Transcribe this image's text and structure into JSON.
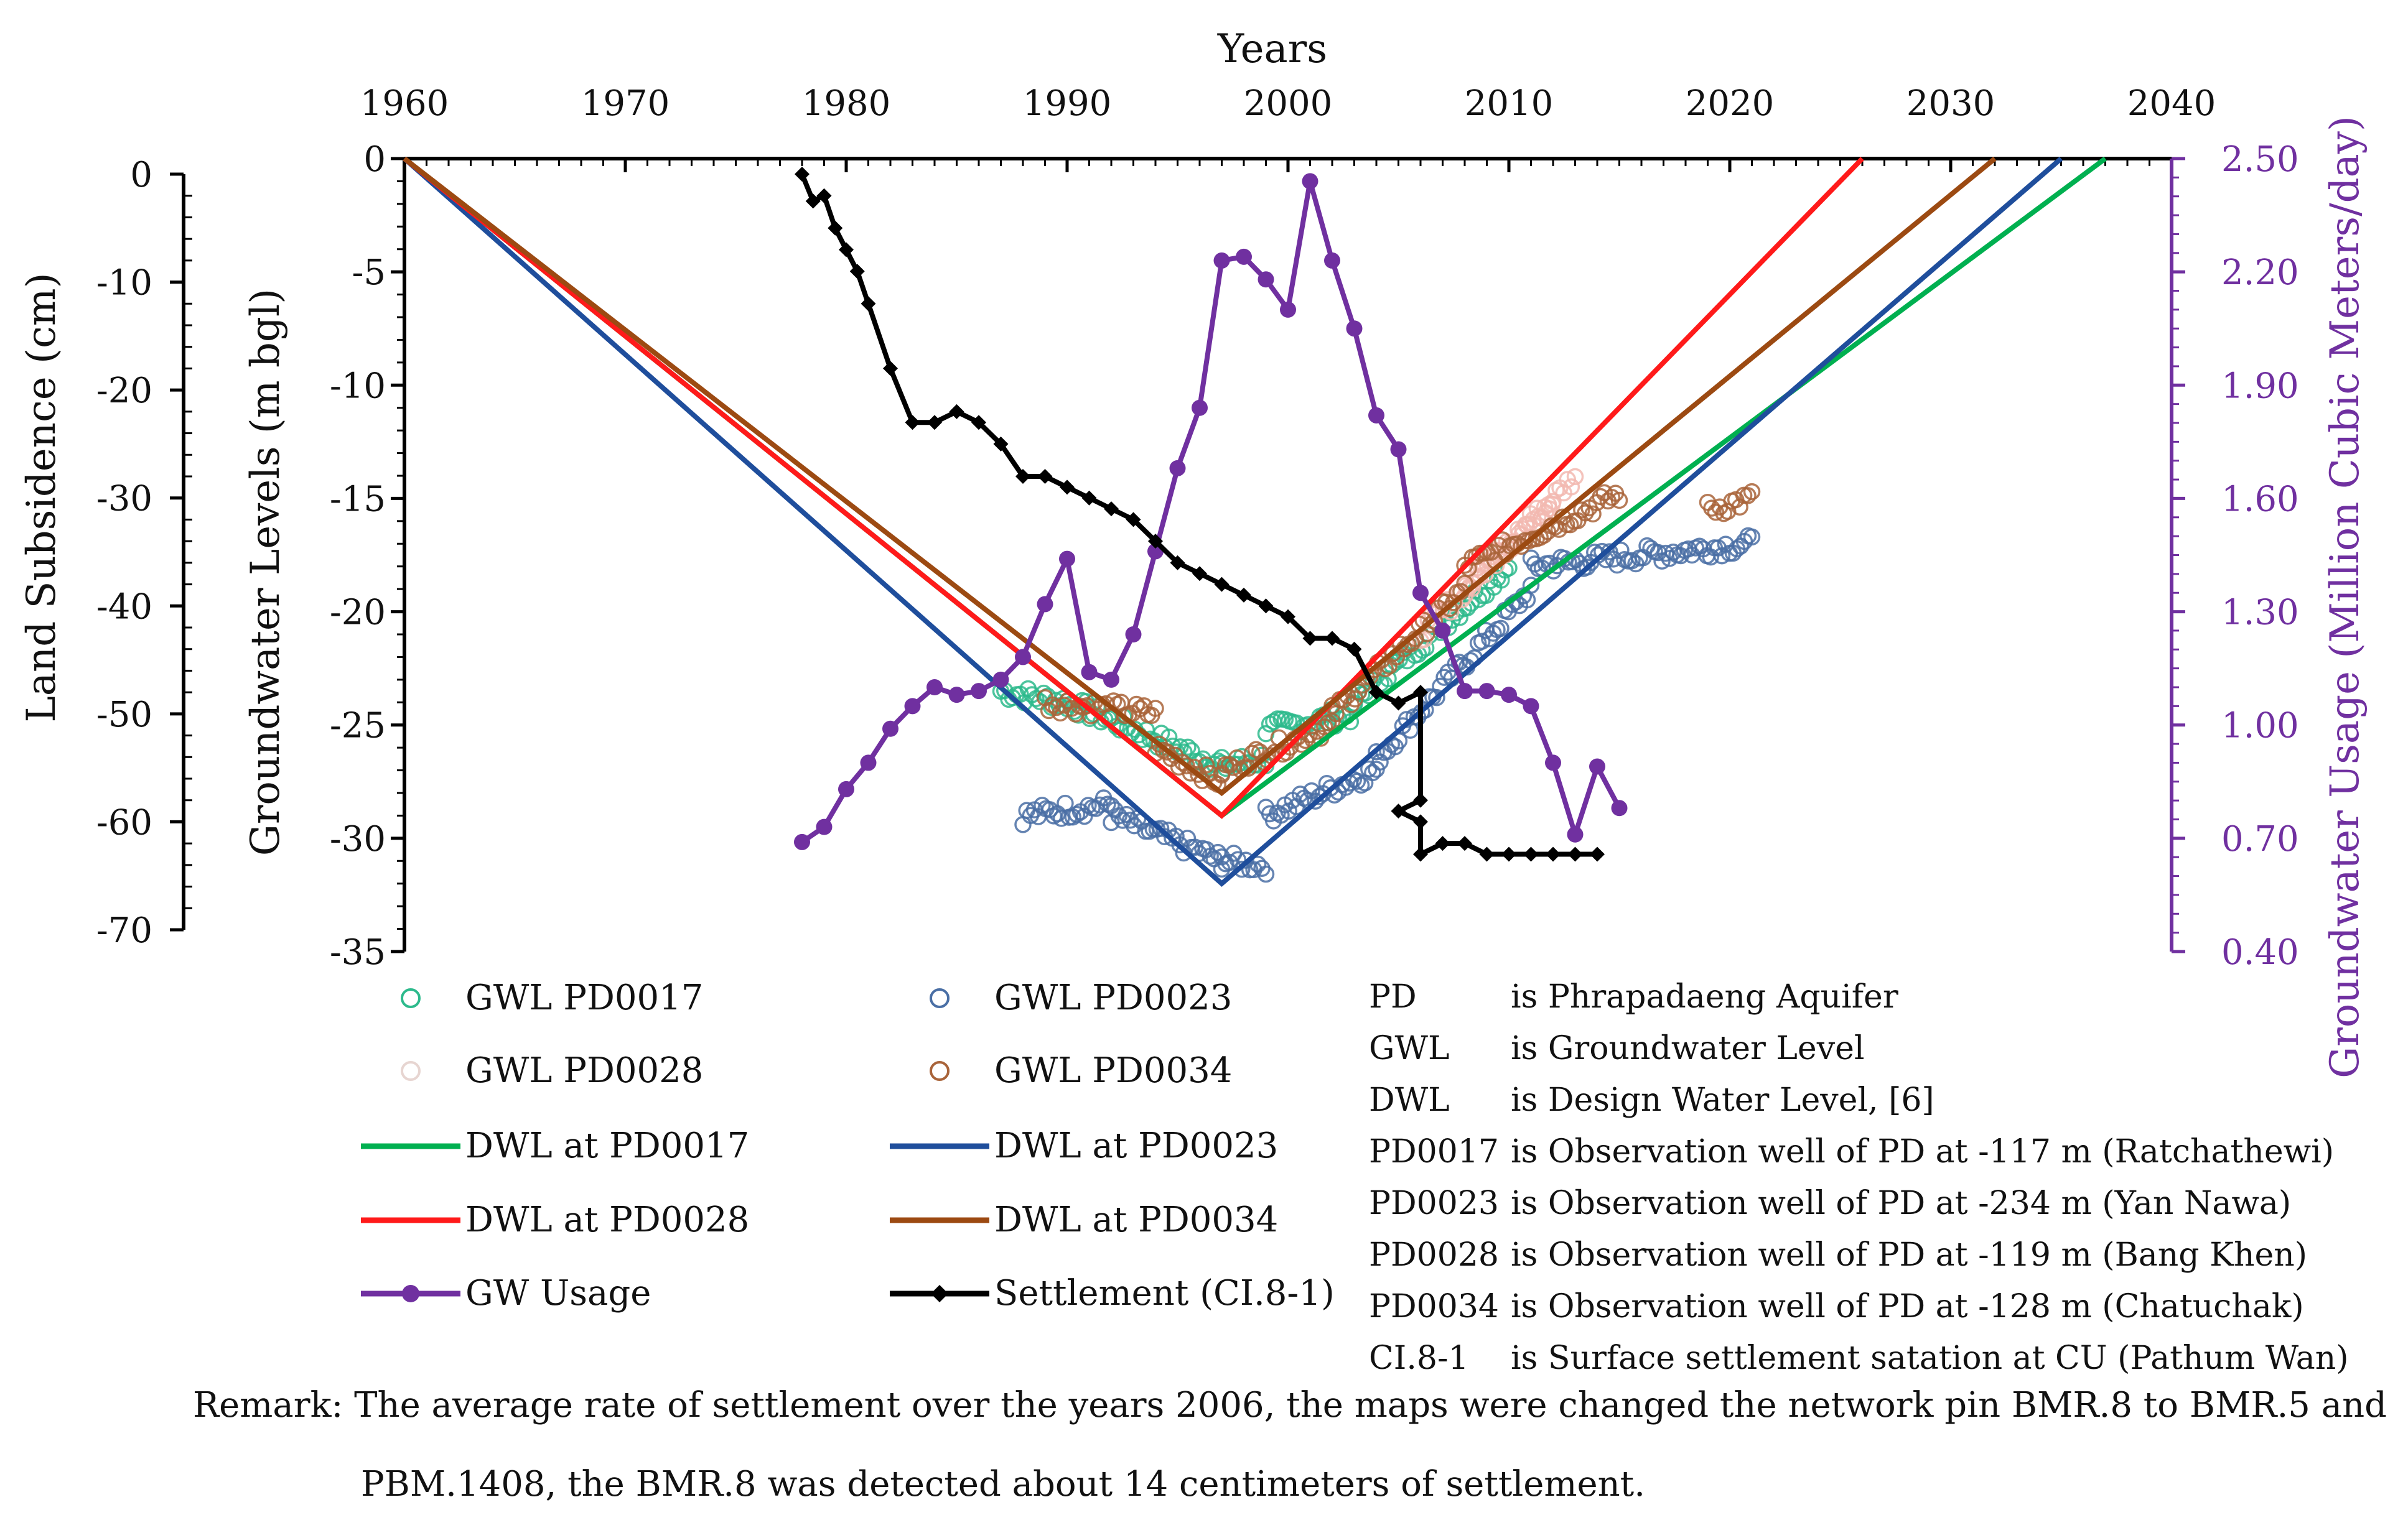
{
  "chart_data": {
    "type": "line+scatter",
    "x_axis": {
      "title": "Years",
      "range": [
        1960,
        2040
      ],
      "ticks": [
        "1960",
        "1970",
        "1980",
        "1990",
        "2000",
        "2010",
        "2020",
        "2030",
        "2040"
      ],
      "tick_values": [
        1960,
        1970,
        1980,
        1990,
        2000,
        2010,
        2020,
        2030,
        2040
      ]
    },
    "gwl_axis": {
      "title": "Groundwater Levels (m bgl)",
      "range": [
        -35,
        0
      ],
      "ticks": [
        "0",
        "-5",
        "-10",
        "-15",
        "-20",
        "-25",
        "-30",
        "-35"
      ],
      "tick_values": [
        0,
        -5,
        -10,
        -15,
        -20,
        -25,
        -30,
        -35
      ]
    },
    "subsidence_axis": {
      "title": "Land Subsidence (cm)",
      "range": [
        -70,
        0
      ],
      "ticks": [
        "0",
        "-10",
        "-20",
        "-30",
        "-40",
        "-50",
        "-60",
        "-70"
      ],
      "tick_values": [
        0,
        -10,
        -20,
        -30,
        -40,
        -50,
        -60,
        -70
      ]
    },
    "usage_axis": {
      "title": "Groundwater Usage (Million Cubic Meters/day)",
      "range": [
        0.4,
        2.5
      ],
      "ticks": [
        "2.50",
        "2.20",
        "1.90",
        "1.60",
        "1.30",
        "1.00",
        "0.70",
        "0.40"
      ],
      "tick_values": [
        2.5,
        2.2,
        1.9,
        1.6,
        1.3,
        1.0,
        0.7,
        0.4
      ]
    },
    "dwl_series": [
      {
        "name": "DWL at PD0017",
        "color": "#00b050",
        "x": [
          1960,
          1997,
          2037
        ],
        "y": [
          0,
          -29,
          0
        ]
      },
      {
        "name": "DWL at PD0023",
        "color": "#1f4e9c",
        "x": [
          1960,
          1997,
          2035
        ],
        "y": [
          0,
          -32,
          0
        ]
      },
      {
        "name": "DWL at PD0028",
        "color": "#ff1a1a",
        "x": [
          1960,
          1997,
          2026
        ],
        "y": [
          0,
          -29,
          0
        ]
      },
      {
        "name": "DWL at PD0034",
        "color": "#9c4a12",
        "x": [
          1960,
          1997,
          2032
        ],
        "y": [
          0,
          -28,
          0
        ]
      }
    ],
    "gw_usage": {
      "name": "GW Usage",
      "color": "#7030a0",
      "x": [
        1978,
        1979,
        1980,
        1981,
        1982,
        1983,
        1984,
        1985,
        1986,
        1987,
        1988,
        1989,
        1990,
        1991,
        1992,
        1993,
        1994,
        1995,
        1996,
        1997,
        1998,
        1999,
        2000,
        2001,
        2002,
        2003,
        2004,
        2005,
        2006,
        2007,
        2008,
        2009,
        2010,
        2011,
        2012,
        2013,
        2014,
        2015
      ],
      "y": [
        0.69,
        0.73,
        0.83,
        0.9,
        0.99,
        1.05,
        1.1,
        1.08,
        1.09,
        1.12,
        1.18,
        1.32,
        1.44,
        1.14,
        1.12,
        1.24,
        1.46,
        1.68,
        1.84,
        2.23,
        2.24,
        2.18,
        2.1,
        2.44,
        2.23,
        2.05,
        1.82,
        1.73,
        1.35,
        1.25,
        1.09,
        1.09,
        1.08,
        1.05,
        0.9,
        0.71,
        0.89,
        0.78
      ]
    },
    "settlement": {
      "name": "Settlement (CI.8-1)",
      "color": "#000000",
      "x": [
        1978,
        1978.5,
        1979,
        1979.5,
        1980,
        1980.5,
        1981,
        1982,
        1983,
        1984,
        1985,
        1986,
        1987,
        1988,
        1989,
        1990,
        1991,
        1992,
        1993,
        1994,
        1995,
        1996,
        1997,
        1998,
        1999,
        2000,
        2001,
        2002,
        2003,
        2004,
        2005,
        2006,
        2006,
        2005,
        2006,
        2006,
        2007,
        2008,
        2009,
        2010,
        2011,
        2012,
        2013,
        2014
      ],
      "y": [
        0,
        -2.5,
        -2,
        -5,
        -7,
        -9,
        -12,
        -18,
        -23,
        -23,
        -22,
        -23,
        -25,
        -28,
        -28,
        -29,
        -30,
        -31,
        -32,
        -34,
        -36,
        -37,
        -38,
        -39,
        -40,
        -41,
        -43,
        -43,
        -44,
        -48,
        -49,
        -48,
        -58,
        -59,
        -60,
        -63,
        -62,
        -62,
        -63,
        -63,
        -63,
        -63,
        -63,
        -63
      ]
    },
    "gwl_scatter": [
      {
        "name": "GWL PD0017",
        "color": "#2dba8c"
      },
      {
        "name": "GWL PD0023",
        "color": "#4a6fa5"
      },
      {
        "name": "GWL PD0028",
        "color": "#f2b8b0"
      },
      {
        "name": "GWL PD0034",
        "color": "#a9643a"
      }
    ]
  },
  "legend": {
    "items": [
      {
        "label": "GWL PD0017",
        "kind": "circle",
        "color": "#2dba8c"
      },
      {
        "label": "GWL PD0023",
        "kind": "circle",
        "color": "#4a6fa5"
      },
      {
        "label": "GWL PD0028",
        "kind": "circle",
        "color": "#e7d5d1"
      },
      {
        "label": "GWL PD0034",
        "kind": "circle",
        "color": "#a9643a"
      },
      {
        "label": "DWL at PD0017",
        "kind": "line",
        "color": "#00b050"
      },
      {
        "label": "DWL at PD0023",
        "kind": "line",
        "color": "#1f4e9c"
      },
      {
        "label": "DWL at PD0028",
        "kind": "line",
        "color": "#ff1a1a"
      },
      {
        "label": "DWL at PD0034",
        "kind": "line",
        "color": "#9c4a12"
      },
      {
        "label": "GW Usage",
        "kind": "dot-line",
        "color": "#7030a0"
      },
      {
        "label": "Settlement (CI.8-1)",
        "kind": "diamond-line",
        "color": "#000000"
      }
    ],
    "abbreviations": [
      {
        "key": "PD",
        "text": "is Phrapadaeng Aquifer"
      },
      {
        "key": "GWL",
        "text": "is Groundwater Level"
      },
      {
        "key": "DWL",
        "text": "is Design Water Level, [6]"
      },
      {
        "key": "PD0017",
        "text": "is Observation well of PD at -117 m (Ratchathewi)"
      },
      {
        "key": "PD0023",
        "text": "is Observation well of PD at -234 m (Yan Nawa)"
      },
      {
        "key": "PD0028",
        "text": "is Observation well of PD at -119 m (Bang Khen)"
      },
      {
        "key": "PD0034",
        "text": "is Observation well of PD at -128 m (Chatuchak)"
      },
      {
        "key": "CI.8-1",
        "text": "is Surface settlement satation at CU (Pathum Wan)"
      }
    ]
  },
  "remark": {
    "line1": "Remark: The average rate of settlement over the years 2006, the maps were changed the network pin BMR.8 to BMR.5 and",
    "line2": "PBM.1408, the BMR.8 was detected about 14 centimeters of settlement."
  }
}
